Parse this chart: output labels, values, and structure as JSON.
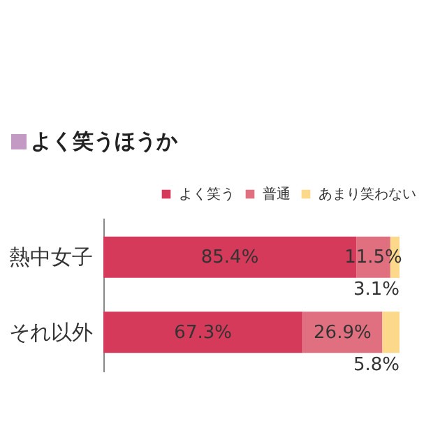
{
  "chart_data": {
    "type": "bar",
    "orientation": "horizontal",
    "stacked": true,
    "title": "よく笑うほうか",
    "categories": [
      "熱中女子",
      "それ以外"
    ],
    "legend": "top right",
    "series": [
      {
        "name": "よく笑う",
        "color": "#d63a5a",
        "values": [
          85.4,
          67.3
        ],
        "value_labels": [
          "85.4%",
          "67.3%"
        ]
      },
      {
        "name": "普通",
        "color": "#e07080",
        "values": [
          11.5,
          26.9
        ],
        "value_labels": [
          "11.5%",
          "26.9%"
        ]
      },
      {
        "name": "あまり笑わない",
        "color": "#fbd88a",
        "values": [
          3.1,
          5.8
        ],
        "value_labels": [
          "3.1%",
          "5.8%"
        ]
      }
    ]
  }
}
